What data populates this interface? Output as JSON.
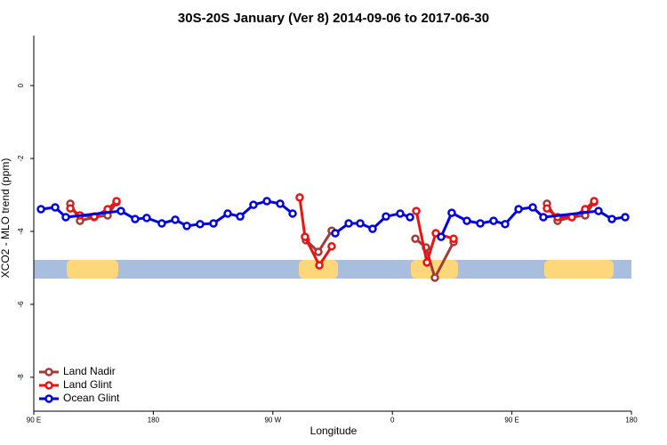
{
  "chart_data": {
    "type": "line",
    "title": "30S-20S January (Ver 8)   2014-09-06 to 2017-06-30",
    "x_label": "Longitude",
    "y_label": "XCO2 - MLO trend (ppm)",
    "xlim": [
      90,
      540
    ],
    "xticks": [
      {
        "value": 90,
        "label": "90 E"
      },
      {
        "value": 180,
        "label": "180"
      },
      {
        "value": 270,
        "label": "90 W"
      },
      {
        "value": 360,
        "label": "0"
      },
      {
        "value": 450,
        "label": "90 E"
      },
      {
        "value": 540,
        "label": "180"
      }
    ],
    "ylim": [
      -8.93,
      1.37
    ],
    "yticks": [
      -8,
      -6,
      -4,
      -2,
      0
    ],
    "legend": "bottom-left",
    "series": [
      {
        "name": "Land Nadir",
        "color": "#a33a3a",
        "x": [
          117.5,
          124.8,
          135.5,
          145.6,
          152.3,
          null,
          294.9,
          304.3,
          314.3,
          null,
          377.3,
          385.3,
          392.0,
          406.1,
          null,
          476.4,
          484.4,
          495.1,
          505.2,
          511.9
        ],
        "values": [
          -3.24,
          -3.71,
          -3.61,
          -3.56,
          -3.2,
          null,
          -4.24,
          -4.56,
          -3.98,
          null,
          -4.2,
          -4.44,
          -5.27,
          -4.29,
          null,
          -3.24,
          -3.71,
          -3.61,
          -3.56,
          -3.2
        ]
      },
      {
        "name": "Land Glint",
        "color": "#ee1111",
        "x": [
          117.5,
          124.8,
          135.5,
          145.6,
          152.3,
          null,
          290.2,
          294.2,
          305.0,
          314.3,
          null,
          378.0,
          386.0,
          392.7,
          406.1,
          null,
          476.4,
          484.4,
          495.1,
          505.2,
          511.9
        ],
        "values": [
          -3.37,
          -3.56,
          -3.59,
          -3.39,
          -3.17,
          null,
          -3.07,
          -4.15,
          -4.93,
          -4.41,
          null,
          -3.44,
          -4.85,
          -4.05,
          -4.2,
          null,
          -3.37,
          -3.61,
          -3.61,
          -3.39,
          -3.17
        ]
      },
      {
        "name": "Ocean Glint",
        "color": "#0000dd",
        "x": [
          95.4,
          106.1,
          114.1,
          155.6,
          166.3,
          175.0,
          186.4,
          196.5,
          205.2,
          215.2,
          225.3,
          236.0,
          245.4,
          255.4,
          265.5,
          275.5,
          284.9,
          null,
          317.0,
          327.1,
          335.8,
          345.1,
          355.2,
          365.9,
          373.3,
          null,
          396.7,
          404.7,
          416.1,
          426.2,
          436.2,
          444.9,
          455.0,
          465.7,
          473.7,
          515.2,
          525.3,
          535.3
        ],
        "values": [
          -3.39,
          -3.34,
          -3.61,
          -3.44,
          -3.66,
          -3.63,
          -3.78,
          -3.68,
          -3.85,
          -3.8,
          -3.78,
          -3.51,
          -3.59,
          -3.27,
          -3.17,
          -3.24,
          -3.51,
          null,
          -4.05,
          -3.78,
          -3.78,
          -3.93,
          -3.59,
          -3.51,
          -3.61,
          null,
          -4.15,
          -3.49,
          -3.71,
          -3.78,
          -3.71,
          -3.8,
          -3.39,
          -3.34,
          -3.61,
          -3.44,
          -3.66,
          -3.61
        ]
      }
    ]
  }
}
